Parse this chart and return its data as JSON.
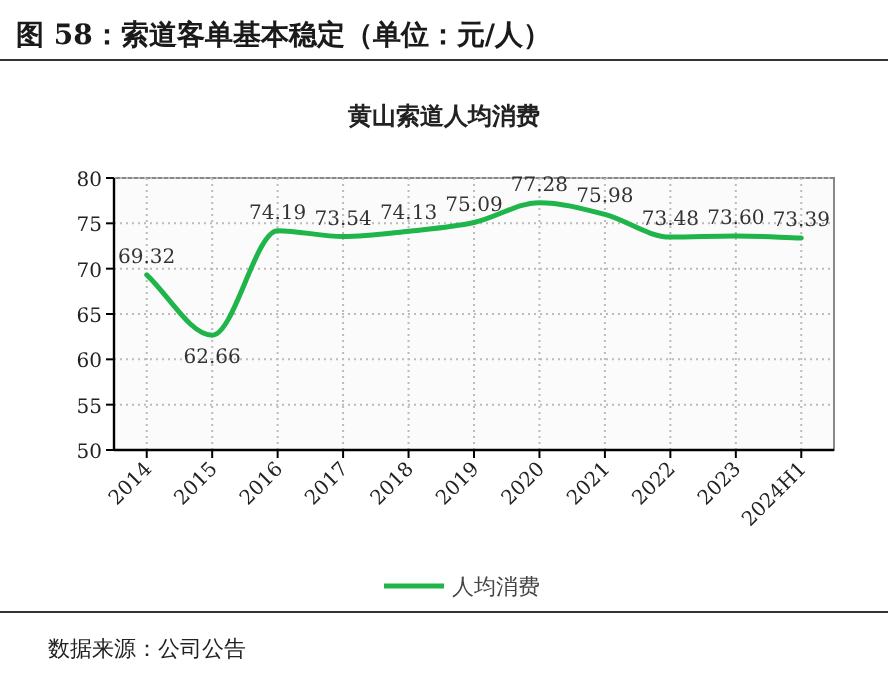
{
  "chart_data": {
    "type": "line",
    "title": "图 58：索道客单基本稳定（单位：元/人）",
    "subtitle": "黄山索道人均消费",
    "categories": [
      "2014",
      "2015",
      "2016",
      "2017",
      "2018",
      "2019",
      "2020",
      "2021",
      "2022",
      "2023",
      "2024H1"
    ],
    "series": [
      {
        "name": "人均消费",
        "color": "#1fb54a",
        "values": [
          69.32,
          62.66,
          74.19,
          73.54,
          74.13,
          75.09,
          77.28,
          75.98,
          73.48,
          73.6,
          73.39
        ],
        "value_labels": [
          "69.32",
          "62.66",
          "74.19",
          "73.54",
          "74.13",
          "75.09",
          "77.28",
          "75.98",
          "73.48",
          "73.60",
          "73.39"
        ]
      }
    ],
    "ylim": [
      50,
      80
    ],
    "yticks": [
      50,
      55,
      60,
      65,
      70,
      75,
      80
    ],
    "grid": true,
    "legend": "bottom",
    "line_style": "solid",
    "annotations": [
      "数据来源：公司公告"
    ]
  }
}
